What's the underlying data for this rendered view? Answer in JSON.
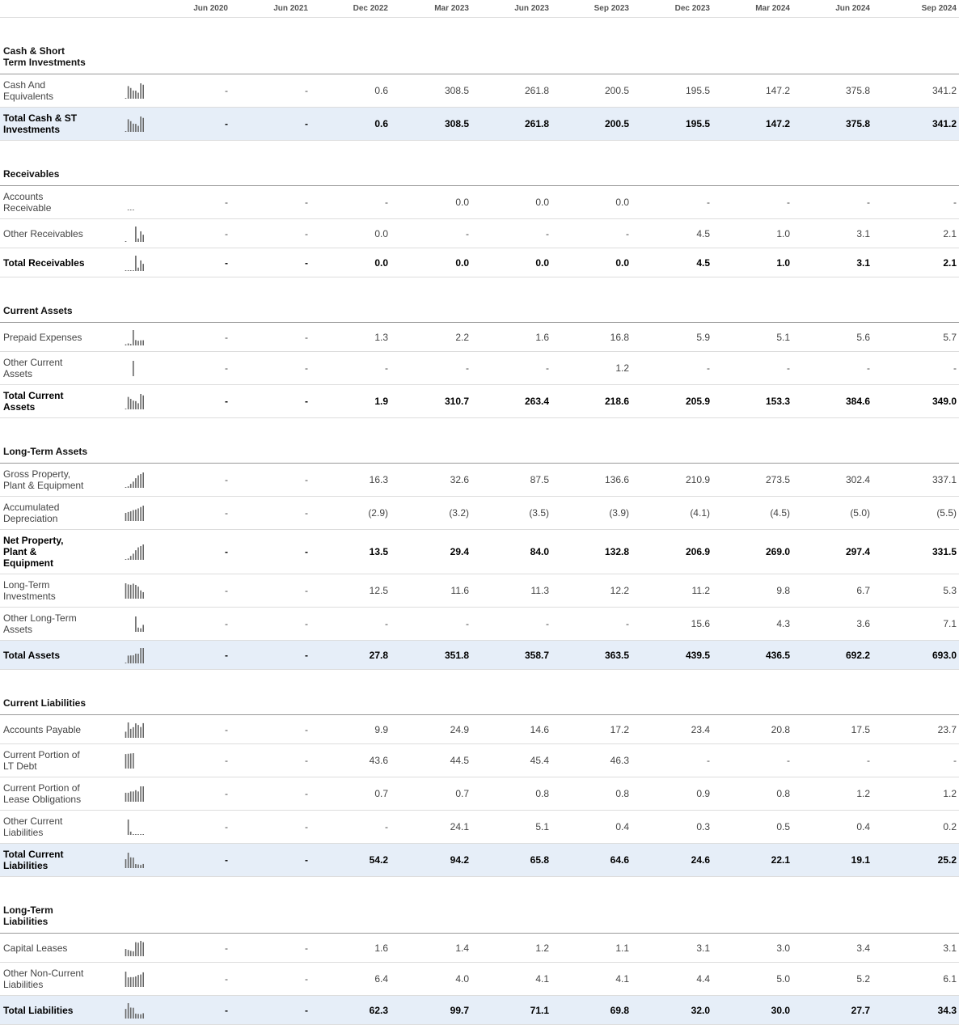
{
  "header": {
    "columns": [
      "Jun 2020",
      "Jun 2021",
      "Dec 2022",
      "Mar 2023",
      "Jun 2023",
      "Sep 2023",
      "Dec 2023",
      "Mar 2024",
      "Jun 2024",
      "Sep 2024"
    ]
  },
  "sections": [
    {
      "title": "Cash & Short Term Investments",
      "rows": [
        {
          "label": "Cash And Equivalents",
          "values": [
            "-",
            "-",
            "0.6",
            "308.5",
            "261.8",
            "200.5",
            "195.5",
            "147.2",
            "375.8",
            "341.2"
          ],
          "bold": false,
          "highlight": false
        },
        {
          "label": "Total Cash & ST Investments",
          "values": [
            "-",
            "-",
            "0.6",
            "308.5",
            "261.8",
            "200.5",
            "195.5",
            "147.2",
            "375.8",
            "341.2"
          ],
          "bold": true,
          "highlight": true
        }
      ]
    },
    {
      "title": "Receivables",
      "rows": [
        {
          "label": "Accounts Receivable",
          "values": [
            "-",
            "-",
            "-",
            "0.0",
            "0.0",
            "0.0",
            "-",
            "-",
            "-",
            "-"
          ],
          "bold": false,
          "highlight": false
        },
        {
          "label": "Other Receivables",
          "values": [
            "-",
            "-",
            "0.0",
            "-",
            "-",
            "-",
            "4.5",
            "1.0",
            "3.1",
            "2.1"
          ],
          "bold": false,
          "highlight": false
        },
        {
          "label": "Total Receivables",
          "values": [
            "-",
            "-",
            "0.0",
            "0.0",
            "0.0",
            "0.0",
            "4.5",
            "1.0",
            "3.1",
            "2.1"
          ],
          "bold": true,
          "highlight": false
        }
      ]
    },
    {
      "title": "Current Assets",
      "rows": [
        {
          "label": "Prepaid Expenses",
          "values": [
            "-",
            "-",
            "1.3",
            "2.2",
            "1.6",
            "16.8",
            "5.9",
            "5.1",
            "5.6",
            "5.7"
          ],
          "bold": false,
          "highlight": false
        },
        {
          "label": "Other Current Assets",
          "values": [
            "-",
            "-",
            "-",
            "-",
            "-",
            "1.2",
            "-",
            "-",
            "-",
            "-"
          ],
          "bold": false,
          "highlight": false
        },
        {
          "label": "Total Current Assets",
          "values": [
            "-",
            "-",
            "1.9",
            "310.7",
            "263.4",
            "218.6",
            "205.9",
            "153.3",
            "384.6",
            "349.0"
          ],
          "bold": true,
          "highlight": false
        }
      ]
    },
    {
      "title": "Long-Term Assets",
      "rows": [
        {
          "label": "Gross Property, Plant & Equipment",
          "values": [
            "-",
            "-",
            "16.3",
            "32.6",
            "87.5",
            "136.6",
            "210.9",
            "273.5",
            "302.4",
            "337.1"
          ],
          "bold": false,
          "highlight": false
        },
        {
          "label": "Accumulated Depreciation",
          "values": [
            "-",
            "-",
            "(2.9)",
            "(3.2)",
            "(3.5)",
            "(3.9)",
            "(4.1)",
            "(4.5)",
            "(5.0)",
            "(5.5)"
          ],
          "bold": false,
          "highlight": false
        },
        {
          "label": "Net Property, Plant & Equipment",
          "values": [
            "-",
            "-",
            "13.5",
            "29.4",
            "84.0",
            "132.8",
            "206.9",
            "269.0",
            "297.4",
            "331.5"
          ],
          "bold": true,
          "highlight": false
        },
        {
          "label": "Long-Term Investments",
          "values": [
            "-",
            "-",
            "12.5",
            "11.6",
            "11.3",
            "12.2",
            "11.2",
            "9.8",
            "6.7",
            "5.3"
          ],
          "bold": false,
          "highlight": false
        },
        {
          "label": "Other Long-Term Assets",
          "values": [
            "-",
            "-",
            "-",
            "-",
            "-",
            "-",
            "15.6",
            "4.3",
            "3.6",
            "7.1"
          ],
          "bold": false,
          "highlight": false
        },
        {
          "label": "Total Assets",
          "values": [
            "-",
            "-",
            "27.8",
            "351.8",
            "358.7",
            "363.5",
            "439.5",
            "436.5",
            "692.2",
            "693.0"
          ],
          "bold": true,
          "highlight": true
        }
      ]
    },
    {
      "title": "Current Liabilities",
      "rows": [
        {
          "label": "Accounts Payable",
          "values": [
            "-",
            "-",
            "9.9",
            "24.9",
            "14.6",
            "17.2",
            "23.4",
            "20.8",
            "17.5",
            "23.7"
          ],
          "bold": false,
          "highlight": false
        },
        {
          "label": "Current Portion of LT Debt",
          "values": [
            "-",
            "-",
            "43.6",
            "44.5",
            "45.4",
            "46.3",
            "-",
            "-",
            "-",
            "-"
          ],
          "bold": false,
          "highlight": false
        },
        {
          "label": "Current Portion of Lease Obligations",
          "values": [
            "-",
            "-",
            "0.7",
            "0.7",
            "0.8",
            "0.8",
            "0.9",
            "0.8",
            "1.2",
            "1.2"
          ],
          "bold": false,
          "highlight": false
        },
        {
          "label": "Other Current Liabilities",
          "values": [
            "-",
            "-",
            "-",
            "24.1",
            "5.1",
            "0.4",
            "0.3",
            "0.5",
            "0.4",
            "0.2"
          ],
          "bold": false,
          "highlight": false
        },
        {
          "label": "Total Current Liabilities",
          "values": [
            "-",
            "-",
            "54.2",
            "94.2",
            "65.8",
            "64.6",
            "24.6",
            "22.1",
            "19.1",
            "25.2"
          ],
          "bold": true,
          "highlight": true
        }
      ]
    },
    {
      "title": "Long-Term Liabilities",
      "rows": [
        {
          "label": "Capital Leases",
          "values": [
            "-",
            "-",
            "1.6",
            "1.4",
            "1.2",
            "1.1",
            "3.1",
            "3.0",
            "3.4",
            "3.1"
          ],
          "bold": false,
          "highlight": false
        },
        {
          "label": "Other Non-Current Liabilities",
          "values": [
            "-",
            "-",
            "6.4",
            "4.0",
            "4.1",
            "4.1",
            "4.4",
            "5.0",
            "5.2",
            "6.1"
          ],
          "bold": false,
          "highlight": false
        },
        {
          "label": "Total Liabilities",
          "values": [
            "-",
            "-",
            "62.3",
            "99.7",
            "71.1",
            "69.8",
            "32.0",
            "30.0",
            "27.7",
            "34.3"
          ],
          "bold": true,
          "highlight": true
        }
      ]
    }
  ]
}
